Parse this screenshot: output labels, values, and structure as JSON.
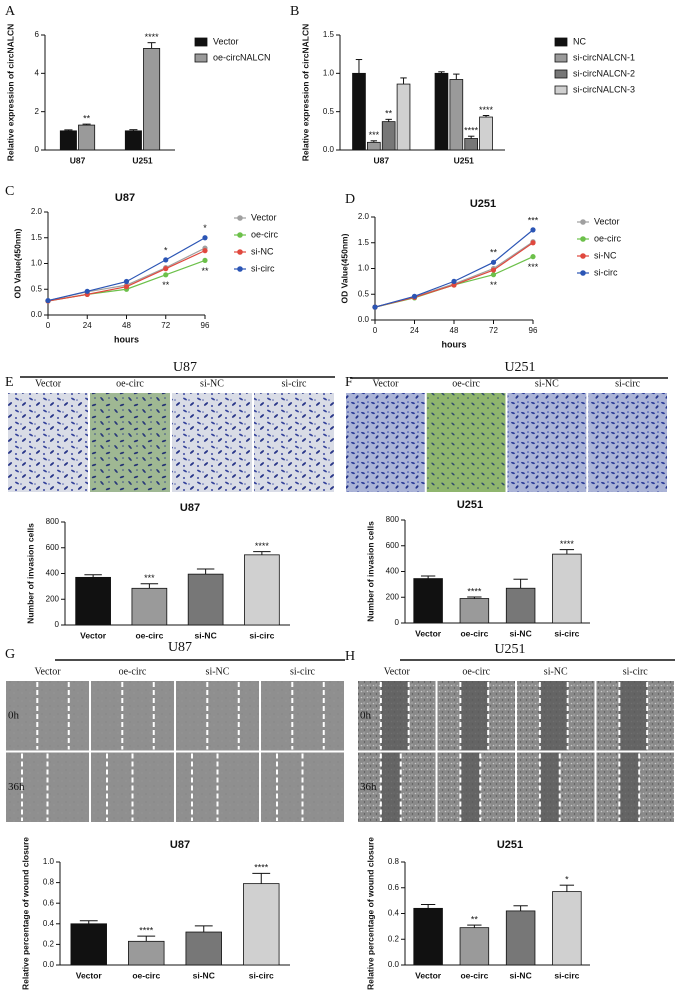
{
  "chart_data": [
    {
      "type": "bar",
      "panel": "A",
      "ylabel": "Relative expression of circNALCN",
      "categories": [
        "U87",
        "U251"
      ],
      "ylim": [
        0,
        6
      ],
      "yticks": [
        0,
        2,
        4,
        6
      ],
      "series": [
        {
          "name": "Vector",
          "color": "#111111",
          "values": [
            1.0,
            1.0
          ],
          "errors": [
            0.05,
            0.06
          ],
          "significance": [
            null,
            null
          ]
        },
        {
          "name": "oe-circNALCN",
          "color": "#9a9a9a",
          "values": [
            1.3,
            5.3
          ],
          "errors": [
            0.05,
            0.3
          ],
          "significance": [
            "**",
            "****"
          ]
        }
      ]
    },
    {
      "type": "bar",
      "panel": "B",
      "ylabel": "Relative expression of circNALCN",
      "categories": [
        "U87",
        "U251"
      ],
      "ylim": [
        0,
        1.5
      ],
      "yticks": [
        {
          "value": 0,
          "label": "0.0"
        },
        0.5,
        {
          "value": 1,
          "label": "1.0"
        },
        1.5
      ],
      "series": [
        {
          "name": "NC",
          "color": "#111111",
          "values": [
            1.0,
            1.0
          ],
          "errors": [
            0.18,
            0.02
          ],
          "significance": [
            null,
            null
          ]
        },
        {
          "name": "si-circNALCN-1",
          "color": "#9a9a9a",
          "values": [
            0.1,
            0.92
          ],
          "errors": [
            0.02,
            0.07
          ],
          "significance": [
            "***",
            null
          ]
        },
        {
          "name": "si-circNALCN-2",
          "color": "#777777",
          "values": [
            0.37,
            0.15
          ],
          "errors": [
            0.03,
            0.03
          ],
          "significance": [
            "**",
            "****"
          ]
        },
        {
          "name": "si-circNALCN-3",
          "color": "#d0d0d0",
          "values": [
            0.86,
            0.43
          ],
          "errors": [
            0.08,
            0.02
          ],
          "significance": [
            null,
            "****"
          ]
        }
      ]
    },
    {
      "type": "line",
      "panel": "C",
      "title": "U87",
      "xlabel": "hours",
      "ylabel": "OD Value(450nm)",
      "x": [
        0,
        24,
        48,
        72,
        96
      ],
      "xlim": [
        0,
        96
      ],
      "xticks": [
        0,
        24,
        48,
        72,
        96
      ],
      "ylim": [
        0,
        2
      ],
      "yticks": [
        {
          "value": 0,
          "label": "0.0"
        },
        0.5,
        {
          "value": 1,
          "label": "1.0"
        },
        1.5,
        {
          "value": 2,
          "label": "2.0"
        }
      ],
      "series": [
        {
          "name": "Vector",
          "color": "#a0a0a0",
          "values": [
            0.28,
            0.45,
            0.58,
            0.92,
            1.3
          ],
          "significance": [
            null,
            null,
            null,
            null,
            null
          ]
        },
        {
          "name": "oe-circ",
          "color": "#6cc04a",
          "values": [
            0.27,
            0.4,
            0.5,
            0.78,
            1.06
          ],
          "significance": [
            null,
            null,
            null,
            "**",
            "**"
          ]
        },
        {
          "name": "si-NC",
          "color": "#e0483e",
          "values": [
            0.27,
            0.4,
            0.55,
            0.9,
            1.25
          ],
          "significance": [
            null,
            null,
            null,
            null,
            null
          ]
        },
        {
          "name": "si-circ",
          "color": "#2b55b5",
          "values": [
            0.28,
            0.46,
            0.65,
            1.07,
            1.5
          ],
          "significance": [
            null,
            null,
            null,
            "*",
            "*"
          ]
        }
      ]
    },
    {
      "type": "line",
      "panel": "D",
      "title": "U251",
      "xlabel": "hours",
      "ylabel": "OD Value(450nm)",
      "x": [
        0,
        24,
        48,
        72,
        96
      ],
      "xlim": [
        0,
        96
      ],
      "xticks": [
        0,
        24,
        48,
        72,
        96
      ],
      "ylim": [
        0,
        2
      ],
      "yticks": [
        {
          "value": 0,
          "label": "0.0"
        },
        0.5,
        {
          "value": 1,
          "label": "1.0"
        },
        1.5,
        {
          "value": 2,
          "label": "2.0"
        }
      ],
      "series": [
        {
          "name": "Vector",
          "color": "#a0a0a0",
          "values": [
            0.25,
            0.45,
            0.7,
            1.0,
            1.52
          ],
          "significance": [
            null,
            null,
            null,
            null,
            null
          ]
        },
        {
          "name": "oe-circ",
          "color": "#6cc04a",
          "values": [
            0.25,
            0.43,
            0.68,
            0.88,
            1.23
          ],
          "significance": [
            null,
            null,
            null,
            "**",
            "***"
          ]
        },
        {
          "name": "si-NC",
          "color": "#e0483e",
          "values": [
            0.25,
            0.44,
            0.68,
            0.97,
            1.5
          ],
          "significance": [
            null,
            null,
            null,
            null,
            null
          ]
        },
        {
          "name": "si-circ",
          "color": "#2b55b5",
          "values": [
            0.25,
            0.46,
            0.75,
            1.12,
            1.75
          ],
          "significance": [
            null,
            null,
            null,
            "**",
            "***"
          ]
        }
      ]
    },
    {
      "type": "bar",
      "title": "U87",
      "ylabel": "Number of invasion cells",
      "categories": [
        "Vector",
        "oe-circ",
        "si-NC",
        "si-circ"
      ],
      "ylim": [
        0,
        800
      ],
      "yticks": [
        0,
        200,
        400,
        600,
        800
      ],
      "values": [
        370,
        285,
        395,
        545
      ],
      "errors": [
        20,
        35,
        40,
        25
      ],
      "significance": [
        null,
        "***",
        null,
        "****"
      ],
      "colors": [
        "#111111",
        "#9a9a9a",
        "#777777",
        "#d0d0d0"
      ]
    },
    {
      "type": "bar",
      "title": "U251",
      "ylabel": "Number of invasion cells",
      "categories": [
        "Vector",
        "oe-circ",
        "si-NC",
        "si-circ"
      ],
      "ylim": [
        0,
        800
      ],
      "yticks": [
        0,
        200,
        400,
        600,
        800
      ],
      "values": [
        345,
        190,
        270,
        535
      ],
      "errors": [
        20,
        12,
        70,
        35
      ],
      "significance": [
        null,
        "****",
        null,
        "****"
      ],
      "colors": [
        "#111111",
        "#9a9a9a",
        "#777777",
        "#d0d0d0"
      ]
    },
    {
      "type": "bar",
      "title": "U87",
      "ylabel": "Relative percentage of wound closure",
      "categories": [
        "Vector",
        "oe-circ",
        "si-NC",
        "si-circ"
      ],
      "ylim": [
        0,
        1
      ],
      "yticks": [
        {
          "value": 0,
          "label": "0.0"
        },
        0.2,
        0.4,
        0.6,
        0.8,
        {
          "value": 1,
          "label": "1.0"
        }
      ],
      "values": [
        0.4,
        0.23,
        0.32,
        0.79
      ],
      "errors": [
        0.03,
        0.05,
        0.06,
        0.1
      ],
      "significance": [
        null,
        "****",
        null,
        "****"
      ],
      "colors": [
        "#111111",
        "#9a9a9a",
        "#777777",
        "#d0d0d0"
      ]
    },
    {
      "type": "bar",
      "title": "U251",
      "ylabel": "Relative percentage of wound closure",
      "categories": [
        "Vector",
        "oe-circ",
        "si-NC",
        "si-circ"
      ],
      "ylim": [
        0,
        0.8
      ],
      "yticks": [
        {
          "value": 0,
          "label": "0.0"
        },
        0.2,
        0.4,
        0.6,
        0.8
      ],
      "values": [
        0.44,
        0.29,
        0.42,
        0.57
      ],
      "errors": [
        0.03,
        0.02,
        0.04,
        0.05
      ],
      "significance": [
        null,
        "**",
        null,
        "*"
      ],
      "colors": [
        "#111111",
        "#9a9a9a",
        "#777777",
        "#d0d0d0"
      ]
    }
  ],
  "images": [
    {
      "panel": "E",
      "title": "U87",
      "columns": [
        "Vector",
        "oe-circ",
        "si-NC",
        "si-circ"
      ]
    },
    {
      "panel": "F",
      "title": "U251",
      "columns": [
        "Vector",
        "oe-circ",
        "si-NC",
        "si-circ"
      ]
    },
    {
      "panel": "G",
      "title": "U87",
      "columns": [
        "Vector",
        "oe-circ",
        "si-NC",
        "si-circ"
      ],
      "rows": [
        "0h",
        "36h"
      ]
    },
    {
      "panel": "H",
      "title": "U251",
      "columns": [
        "Vector",
        "oe-circ",
        "si-NC",
        "si-circ"
      ],
      "rows": [
        "0h",
        "36h"
      ]
    }
  ]
}
